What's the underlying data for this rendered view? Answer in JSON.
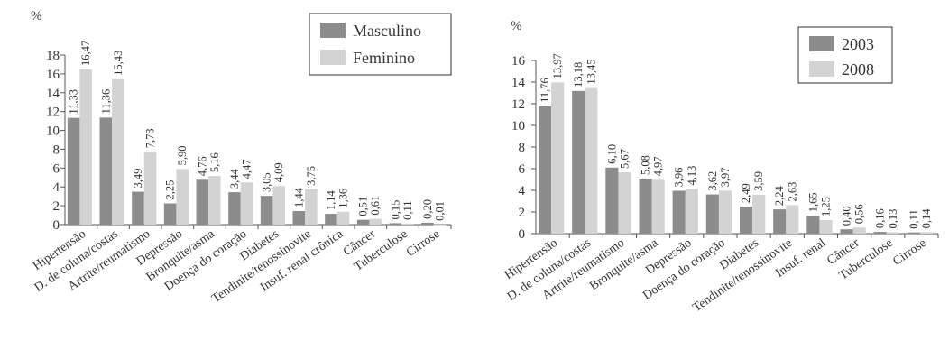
{
  "colors": {
    "series1": "#8c8c8c",
    "series2": "#d3d3d3",
    "axis": "#555555",
    "text": "#333333"
  },
  "chart_data": [
    {
      "type": "bar",
      "unit_label": "%",
      "categories": [
        "Hipertensão",
        "D. de coluna/costas",
        "Artrite/reumatismo",
        "Depressão",
        "Bronquite/asma",
        "Doença do coração",
        "Diabetes",
        "Tendinite/tenossinovite",
        "Insuf. renal crônica",
        "Câncer",
        "Tuberculose",
        "Cirrose"
      ],
      "series": [
        {
          "name": "Masculino",
          "values": [
            11.33,
            11.36,
            3.49,
            2.25,
            4.76,
            3.44,
            3.05,
            1.44,
            1.14,
            0.51,
            0.15,
            0.2
          ]
        },
        {
          "name": "Feminino",
          "values": [
            16.47,
            15.43,
            7.73,
            5.9,
            5.16,
            4.47,
            4.09,
            3.75,
            1.36,
            0.61,
            0.11,
            0.01
          ]
        }
      ],
      "value_labels": [
        [
          "11,33",
          "11,36",
          "3,49",
          "2,25",
          "4,76",
          "3,44",
          "3,05",
          "1,44",
          "1,14",
          "0,51",
          "0,15",
          "0,20"
        ],
        [
          "16,47",
          "15,43",
          "7,73",
          "5,90",
          "5,16",
          "4,47",
          "4,09",
          "3,75",
          "1,36",
          "0,61",
          "0,11",
          "0,01"
        ]
      ],
      "y_ticks": [
        0,
        2,
        4,
        6,
        8,
        10,
        12,
        14,
        16,
        18
      ],
      "ylim": [
        0,
        18
      ],
      "grid": false,
      "legend_position": "top-right"
    },
    {
      "type": "bar",
      "unit_label": "%",
      "categories": [
        "Hipertensão",
        "D. de coluna/costas",
        "Artrite/reumatismo",
        "Bronquite/asma",
        "Depressão",
        "Doença do coração",
        "Diabetes",
        "Tendinite/tenossinovite",
        "Insuf. renal",
        "Câncer",
        "Tuberculose",
        "Cirrose"
      ],
      "series": [
        {
          "name": "2003",
          "values": [
            11.76,
            13.18,
            6.1,
            5.08,
            3.96,
            3.62,
            2.49,
            2.24,
            1.65,
            0.4,
            0.16,
            0.11
          ]
        },
        {
          "name": "2008",
          "values": [
            13.97,
            13.45,
            5.67,
            4.97,
            4.13,
            3.97,
            3.59,
            2.63,
            1.25,
            0.56,
            0.13,
            0.14
          ]
        }
      ],
      "value_labels": [
        [
          "11,76",
          "13,18",
          "6,10",
          "5,08",
          "3,96",
          "3,62",
          "2,49",
          "2,24",
          "1,65",
          "0,40",
          "0,16",
          "0,11"
        ],
        [
          "13,97",
          "13,45",
          "5,67",
          "4,97",
          "4,13",
          "3,97",
          "3,59",
          "2,63",
          "1,25",
          "0,56",
          "0,13",
          "0,14"
        ]
      ],
      "y_ticks": [
        0,
        2,
        4,
        6,
        8,
        10,
        12,
        14,
        16
      ],
      "ylim": [
        0,
        16
      ],
      "grid": false,
      "legend_position": "top-right"
    }
  ]
}
